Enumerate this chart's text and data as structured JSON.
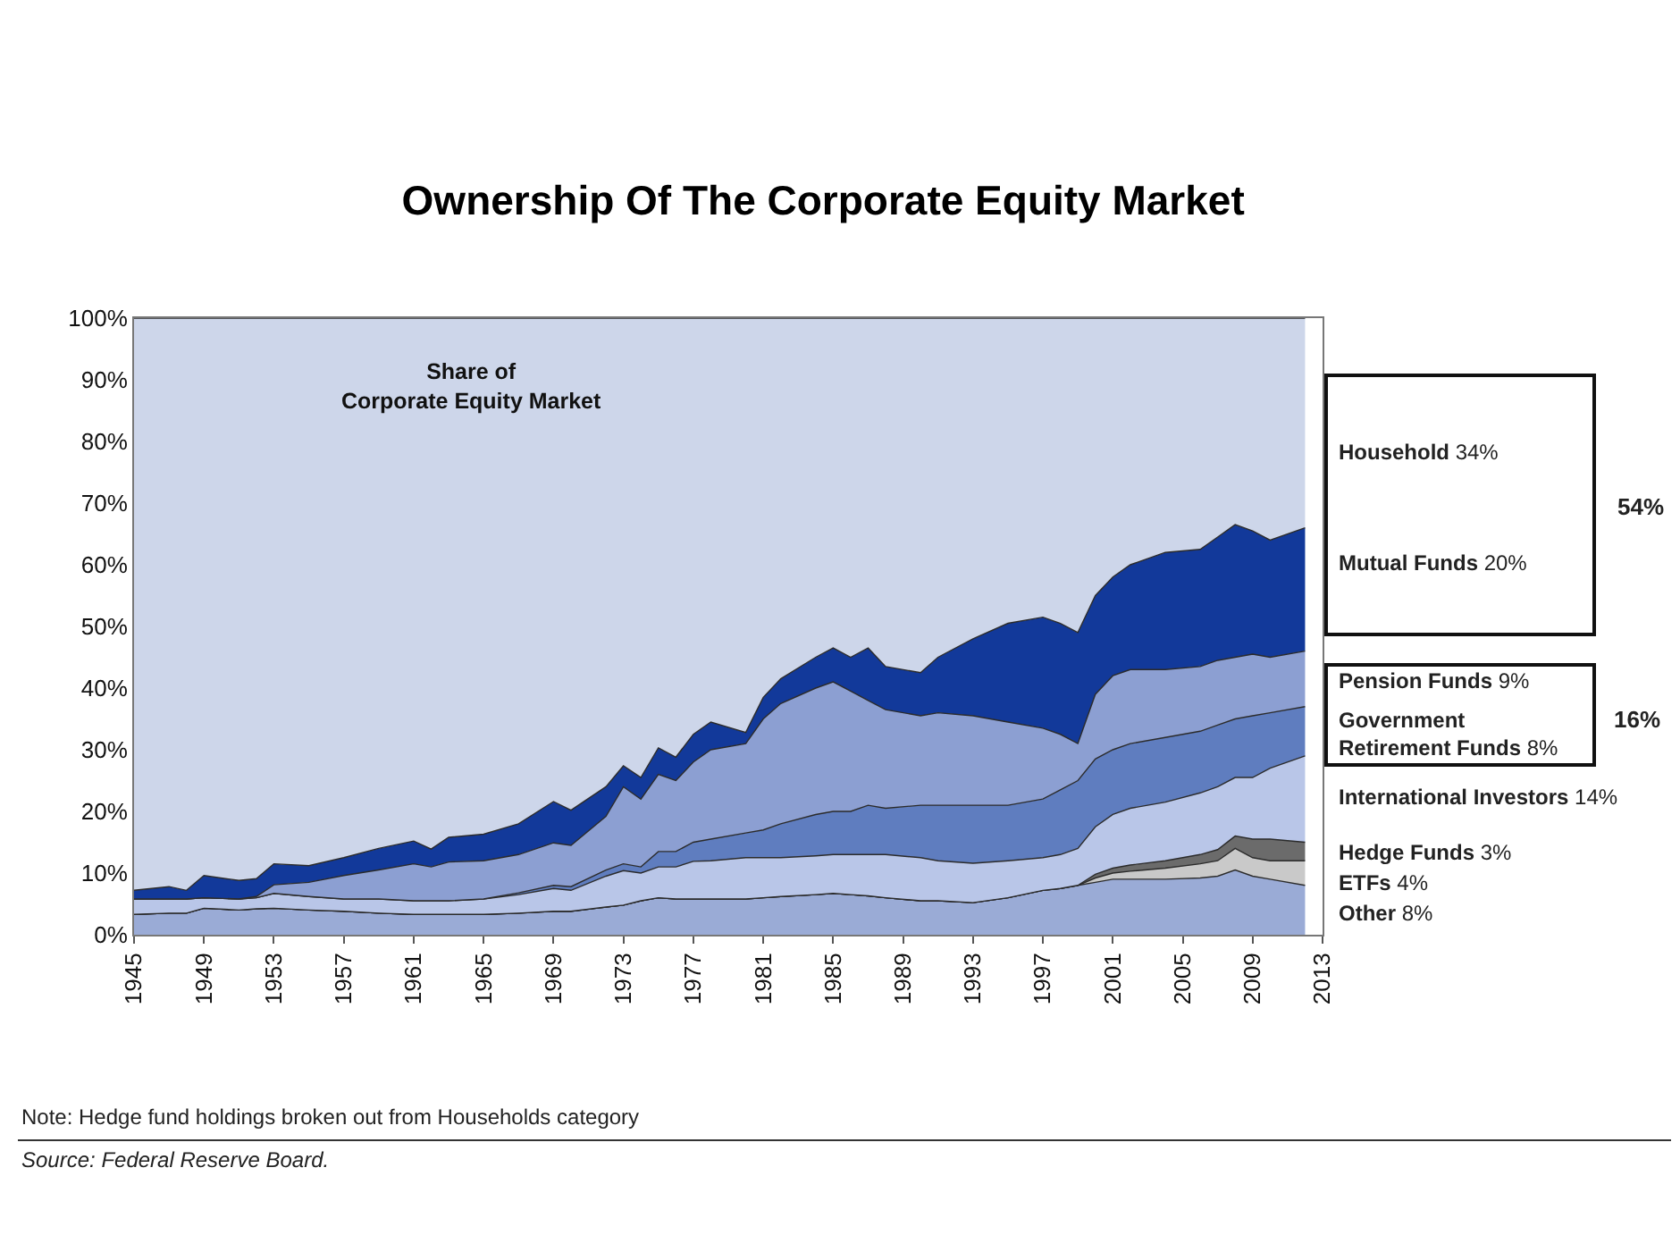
{
  "chart_data": {
    "type": "area",
    "stacked": true,
    "title": "Ownership Of The Corporate Equity Market",
    "subtitle": "Share of\nCorporate Equity Market",
    "x": [
      1945,
      1947,
      1948,
      1949,
      1951,
      1952,
      1953,
      1955,
      1957,
      1959,
      1961,
      1962,
      1963,
      1965,
      1967,
      1969,
      1970,
      1972,
      1973,
      1974,
      1975,
      1976,
      1977,
      1978,
      1980,
      1981,
      1982,
      1984,
      1985,
      1986,
      1987,
      1988,
      1990,
      1991,
      1993,
      1995,
      1997,
      1998,
      1999,
      2000,
      2001,
      2002,
      2004,
      2006,
      2007,
      2008,
      2009,
      2010,
      2012
    ],
    "xlim": [
      1945,
      2013
    ],
    "xticks": [
      1945,
      1949,
      1953,
      1957,
      1961,
      1965,
      1969,
      1973,
      1977,
      1981,
      1985,
      1989,
      1993,
      1997,
      2001,
      2005,
      2009,
      2013
    ],
    "ylim": [
      0,
      100
    ],
    "yticks": [
      {
        "value": 0,
        "label": "0%"
      },
      {
        "value": 10,
        "label": "10%"
      },
      {
        "value": 20,
        "label": "20%"
      },
      {
        "value": 30,
        "label": "30%"
      },
      {
        "value": 40,
        "label": "40%"
      },
      {
        "value": 50,
        "label": "50%"
      },
      {
        "value": 60,
        "label": "60%"
      },
      {
        "value": 70,
        "label": "70%"
      },
      {
        "value": 80,
        "label": "80%"
      },
      {
        "value": 90,
        "label": "90%"
      },
      {
        "value": 100,
        "label": "100%"
      }
    ],
    "series": [
      {
        "color": "#9aabd6",
        "values": [
          3.3,
          3.5,
          3.5,
          4.3,
          4.0,
          4.2,
          4.3,
          4.0,
          3.8,
          3.5,
          3.3,
          3.3,
          3.3,
          3.3,
          3.5,
          3.8,
          3.8,
          4.5,
          4.8,
          5.5,
          6.0,
          5.8,
          5.8,
          5.8,
          5.8,
          6.0,
          6.2,
          6.5,
          6.7,
          6.5,
          6.3,
          6.0,
          5.5,
          5.5,
          5.2,
          6.0,
          7.2,
          7.5,
          8.0,
          8.5,
          9.0,
          9.0,
          9.0,
          9.2,
          9.5,
          10.5,
          9.5,
          9.0,
          8
        ]
      },
      {
        "color": "#c9c9c9",
        "values": [
          0,
          0,
          0,
          0,
          0,
          0,
          0,
          0,
          0,
          0,
          0,
          0,
          0,
          0,
          0,
          0,
          0,
          0,
          0,
          0,
          0,
          0,
          0,
          0,
          0,
          0,
          0,
          0,
          0,
          0,
          0,
          0,
          0,
          0,
          0,
          0,
          0,
          0,
          0,
          0.7,
          1.0,
          1.3,
          1.8,
          2.3,
          2.5,
          3.5,
          3.0,
          3.0,
          4
        ]
      },
      {
        "color": "#6b6b6b",
        "values": [
          0,
          0,
          0,
          0,
          0,
          0,
          0,
          0,
          0,
          0,
          0,
          0,
          0,
          0,
          0,
          0,
          0,
          0,
          0,
          0,
          0,
          0,
          0,
          0,
          0,
          0,
          0,
          0,
          0,
          0,
          0,
          0,
          0,
          0,
          0,
          0,
          0,
          0,
          0,
          0.6,
          0.8,
          1.0,
          1.2,
          1.5,
          1.8,
          2.0,
          3.0,
          3.5,
          3
        ]
      },
      {
        "color": "#b9c6e8",
        "values": [
          2.5,
          2.3,
          2.3,
          1.7,
          1.8,
          1.8,
          2.4,
          2.2,
          2.0,
          2.3,
          2.2,
          2.2,
          2.2,
          2.5,
          3.0,
          3.7,
          3.4,
          5.0,
          5.6,
          4.5,
          5.0,
          5.2,
          6.1,
          6.2,
          6.7,
          6.5,
          6.3,
          6.3,
          6.3,
          6.5,
          6.7,
          7.0,
          7.0,
          6.5,
          6.4,
          6.0,
          5.3,
          5.5,
          6.0,
          7.7,
          8.7,
          9.2,
          9.5,
          10.0,
          10.2,
          9.5,
          10.0,
          11.5,
          14
        ]
      },
      {
        "color": "#5f7dbf",
        "values": [
          0,
          0,
          0,
          0,
          0,
          0,
          0,
          0,
          0,
          0,
          0,
          0,
          0,
          0,
          0.3,
          0.5,
          0.6,
          1.0,
          1.1,
          1.0,
          2.5,
          2.5,
          3.1,
          3.5,
          4.0,
          4.5,
          5.5,
          6.7,
          7.0,
          7.0,
          8.0,
          7.5,
          8.5,
          9.0,
          9.4,
          9.0,
          9.5,
          10.5,
          11.0,
          11.0,
          10.5,
          10.5,
          10.5,
          10.0,
          10.0,
          9.5,
          10.0,
          9.0,
          8
        ]
      },
      {
        "color": "#8c9fd2",
        "values": [
          0,
          0,
          0,
          0,
          0,
          0.2,
          1.4,
          2.3,
          3.8,
          4.7,
          6.0,
          5.5,
          6.3,
          6.2,
          6.2,
          6.9,
          6.7,
          8.7,
          12.5,
          11.0,
          12.5,
          11.5,
          13.0,
          14.5,
          14.5,
          18.0,
          19.5,
          20.5,
          21.0,
          19.5,
          17.0,
          16.0,
          14.5,
          15.0,
          14.5,
          13.5,
          11.5,
          9.0,
          6.0,
          10.5,
          12.0,
          12.0,
          11.0,
          10.5,
          10.5,
          10.0,
          10.0,
          9.0,
          9
        ]
      },
      {
        "color": "#12399a",
        "values": [
          1.4,
          2.0,
          1.4,
          3.6,
          3.0,
          2.9,
          3.4,
          2.7,
          2.9,
          3.5,
          3.7,
          2.9,
          4.0,
          4.3,
          5.0,
          6.7,
          5.7,
          4.8,
          3.4,
          3.5,
          4.3,
          3.8,
          4.5,
          4.5,
          1.8,
          3.5,
          4.0,
          5.0,
          5.5,
          5.5,
          8.5,
          7.0,
          7.0,
          9.0,
          12.5,
          16.0,
          18.0,
          18.0,
          18.0,
          16.0,
          16.0,
          17.0,
          19.0,
          19.0,
          20.0,
          21.5,
          20.0,
          19.0,
          20
        ]
      },
      {
        "color": "#cdd6ea",
        "values": [
          92.8,
          92.2,
          92.8,
          90.4,
          91.2,
          90.9,
          88.5,
          88.8,
          87.5,
          86.0,
          84.8,
          86.1,
          84.2,
          83.7,
          82.0,
          78.4,
          79.8,
          76.0,
          72.6,
          74.5,
          69.7,
          71.2,
          67.5,
          65.5,
          67.2,
          61.5,
          58.5,
          55.0,
          53.5,
          55.0,
          53.5,
          56.5,
          57.5,
          55.0,
          52.0,
          49.5,
          48.5,
          49.5,
          51.0,
          45.0,
          42.0,
          40.0,
          38.0,
          37.5,
          35.5,
          33.5,
          34.5,
          36.0,
          34
        ]
      }
    ],
    "annotations": [
      "Household 34%",
      "Mutual Funds 20%",
      "54%",
      "Pension Funds 9%",
      "Government Retirement Funds 8%",
      "16%",
      "International Investors 14%",
      "Hedge Funds 3%",
      "ETFs 4%",
      "Other 8%",
      "Note: Hedge fund holdings broken out from Households category",
      "Source: Federal Reserve Board."
    ]
  }
}
